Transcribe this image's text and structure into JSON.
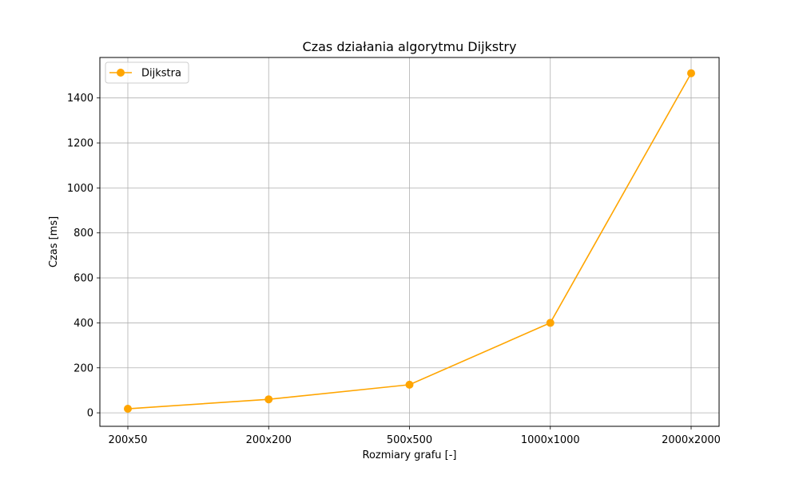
{
  "chart_data": {
    "type": "line",
    "title": "Czas działania algorytmu Dijkstry",
    "xlabel": "Rozmiary grafu [-]",
    "ylabel": "Czas [ms]",
    "categories": [
      "200x50",
      "200x200",
      "500x500",
      "1000x1000",
      "2000x2000"
    ],
    "series": [
      {
        "name": "Dijkstra",
        "values": [
          18,
          60,
          125,
          400,
          1510
        ],
        "color": "#FFA500",
        "marker": "circle"
      }
    ],
    "ylim": [
      -60,
      1580
    ],
    "yticks": [
      0,
      200,
      400,
      600,
      800,
      1000,
      1200,
      1400
    ],
    "grid": true,
    "legend_position": "top-left"
  }
}
